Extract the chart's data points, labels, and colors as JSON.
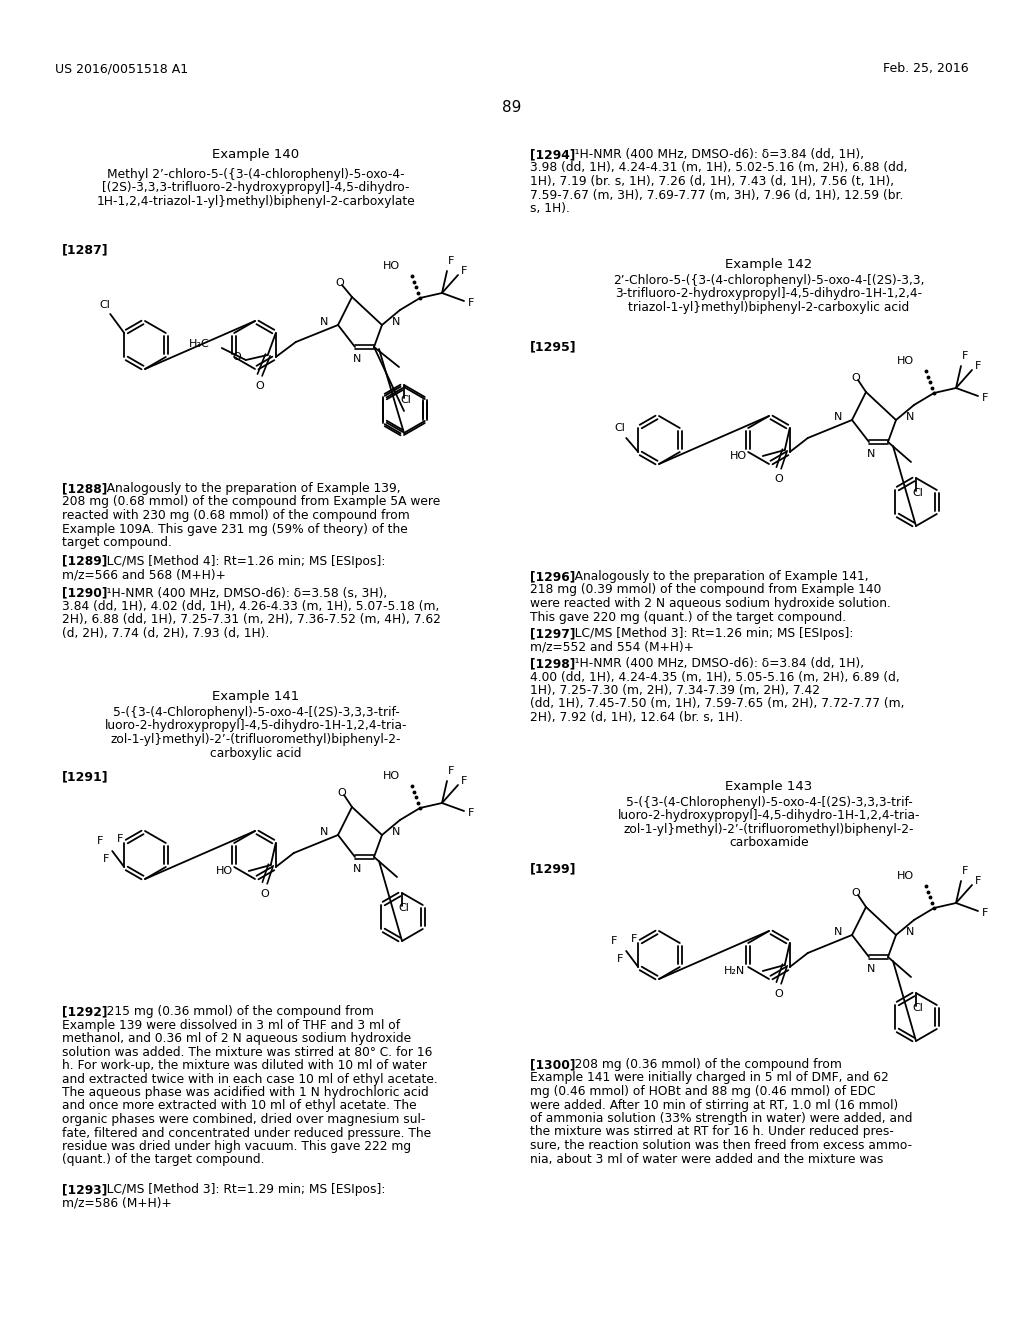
{
  "background_color": "#ffffff",
  "header_left": "US 2016/0051518 A1",
  "header_right": "Feb. 25, 2016",
  "page_number": "89",
  "example140_title": "Example 140",
  "example140_compound": "Methyl 2’-chloro-5-({3-(4-chlorophenyl)-5-oxo-4-\n[(2S)-3,3,3-trifluoro-2-hydroxypropyl]-4,5-dihydro-\n1H-1,2,4-triazol-1-yl}methyl)biphenyl-2-carboxylate",
  "ref1287": "[1287]",
  "ref1288_text": "[1288]   Analogously to the preparation of Example 139,\n208 mg (0.68 mmol) of the compound from Example 5A were\nreacted with 230 mg (0.68 mmol) of the compound from\nExample 109A. This gave 231 mg (59% of theory) of the\ntarget compound.",
  "ref1289_text": "[1289]   LC/MS [Method 4]: Rt=1.26 min; MS [ESIpos]:\nm/z=566 and 568 (M+H)+",
  "ref1290_text": "[1290]   ¹H-NMR (400 MHz, DMSO-d6): δ=3.58 (s, 3H),\n3.84 (dd, 1H), 4.02 (dd, 1H), 4.26-4.33 (m, 1H), 5.07-5.18 (m,\n2H), 6.88 (dd, 1H), 7.25-7.31 (m, 2H), 7.36-7.52 (m, 4H), 7.62\n(d, 2H), 7.74 (d, 2H), 7.93 (d, 1H).",
  "ref1294_text": "[1294]   ¹H-NMR (400 MHz, DMSO-d6): δ=3.84 (dd, 1H),\n3.98 (dd, 1H), 4.24-4.31 (m, 1H), 5.02-5.16 (m, 2H), 6.88 (dd,\n1H), 7.19 (br. s, 1H), 7.26 (d, 1H), 7.43 (d, 1H), 7.56 (t, 1H),\n7.59-7.67 (m, 3H), 7.69-7.77 (m, 3H), 7.96 (d, 1H), 12.59 (br.\ns, 1H).",
  "example141_title": "Example 141",
  "example141_compound": "5-({3-(4-Chlorophenyl)-5-oxo-4-[(2S)-3,3,3-trif-\nluoro-2-hydroxypropyl]-4,5-dihydro-1H-1,2,4-tria-\nzol-1-yl}methyl)-2’-(trifluoromethyl)biphenyl-2-\ncarboxylic acid",
  "ref1291": "[1291]",
  "ref1292_text": "[1292]   215 mg (0.36 mmol) of the compound from\nExample 139 were dissolved in 3 ml of THF and 3 ml of\nmethanol, and 0.36 ml of 2 N aqueous sodium hydroxide\nsolution was added. The mixture was stirred at 80° C. for 16\nh. For work-up, the mixture was diluted with 10 ml of water\nand extracted twice with in each case 10 ml of ethyl acetate.\nThe aqueous phase was acidified with 1 N hydrochloric acid\nand once more extracted with 10 ml of ethyl acetate. The\norganic phases were combined, dried over magnesium sul-\nfate, filtered and concentrated under reduced pressure. The\nresidue was dried under high vacuum. This gave 222 mg\n(quant.) of the target compound.",
  "ref1293_text": "[1293]   LC/MS [Method 3]: Rt=1.29 min; MS [ESIpos]:\nm/z=586 (M+H)+",
  "example142_title": "Example 142",
  "example142_compound": "2’-Chloro-5-({3-(4-chlorophenyl)-5-oxo-4-[(2S)-3,3,\n3-trifluoro-2-hydroxypropyl]-4,5-dihydro-1H-1,2,4-\ntriazol-1-yl}methyl)biphenyl-2-carboxylic acid",
  "ref1295": "[1295]",
  "ref1296_text": "[1296]   Analogously to the preparation of Example 141,\n218 mg (0.39 mmol) of the compound from Example 140\nwere reacted with 2 N aqueous sodium hydroxide solution.\nThis gave 220 mg (quant.) of the target compound.",
  "ref1297_text": "[1297]   LC/MS [Method 3]: Rt=1.26 min; MS [ESIpos]:\nm/z=552 and 554 (M+H)+",
  "ref1298_text": "[1298]   ¹H-NMR (400 MHz, DMSO-d6): δ=3.84 (dd, 1H),\n4.00 (dd, 1H), 4.24-4.35 (m, 1H), 5.05-5.16 (m, 2H), 6.89 (d,\n1H), 7.25-7.30 (m, 2H), 7.34-7.39 (m, 2H), 7.42\n(dd, 1H), 7.45-7.50 (m, 1H), 7.59-7.65 (m, 2H), 7.72-7.77 (m,\n2H), 7.92 (d, 1H), 12.64 (br. s, 1H).",
  "example143_title": "Example 143",
  "example143_compound": "5-({3-(4-Chlorophenyl)-5-oxo-4-[(2S)-3,3,3-trif-\nluoro-2-hydroxypropyl]-4,5-dihydro-1H-1,2,4-tria-\nzol-1-yl}methyl)-2’-(trifluoromethyl)biphenyl-2-\ncarboxamide",
  "ref1299": "[1299]",
  "ref1300_text": "[1300]   208 mg (0.36 mmol) of the compound from\nExample 141 were initially charged in 5 ml of DMF, and 62\nmg (0.46 mmol) of HOBt and 88 mg (0.46 mmol) of EDC\nwere added. After 10 min of stirring at RT, 1.0 ml (16 mmol)\nof ammonia solution (33% strength in water) were added, and\nthe mixture was stirred at RT for 16 h. Under reduced pres-\nsure, the reaction solution was then freed from excess ammo-\nnia, about 3 ml of water were added and the mixture was"
}
